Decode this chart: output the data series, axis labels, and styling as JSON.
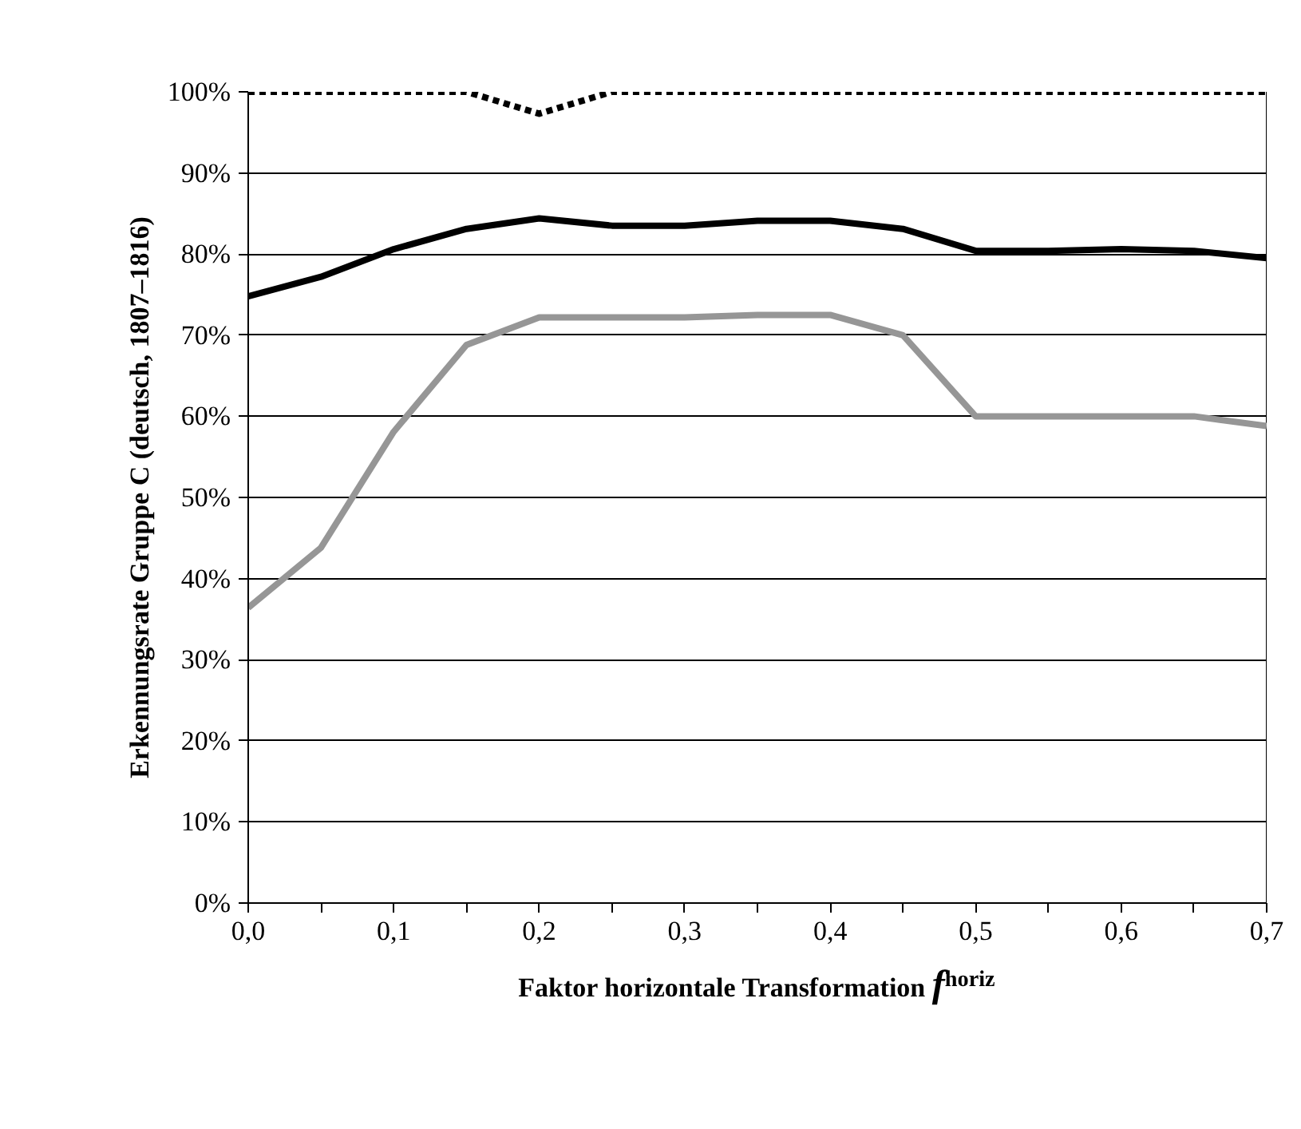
{
  "chart_data": {
    "type": "line",
    "xlabel": "Faktor horizontale Transformation f$^{horiz}$",
    "ylabel": "Erkennungsrate Gruppe C (deutsch, 1807–1816)",
    "x": [
      0,
      0.05,
      0.1,
      0.15,
      0.2,
      0.25,
      0.3,
      0.35,
      0.4,
      0.45,
      0.5,
      0.55,
      0.6,
      0.65,
      0.7
    ],
    "series": [
      {
        "color": "#000000",
        "line_style": "dashed",
        "values": [
          100,
          100,
          100,
          100,
          97.3,
          100,
          100,
          100,
          100,
          100,
          100,
          100,
          100,
          100,
          100
        ]
      },
      {
        "color": "#000000",
        "line_style": "solid",
        "values": [
          74.8,
          77.2,
          80.6,
          83.1,
          84.4,
          83.5,
          83.5,
          84.1,
          84.1,
          83.1,
          80.4,
          80.4,
          80.6,
          80.4,
          79.5
        ]
      },
      {
        "color": "#969696",
        "line_style": "solid",
        "values": [
          36.4,
          43.8,
          58.1,
          68.8,
          72.2,
          72.2,
          72.2,
          72.5,
          72.5,
          70,
          60,
          60,
          60,
          60,
          58.8
        ]
      }
    ],
    "xlim": [
      0,
      0.7
    ],
    "xticks": [
      {
        "value": 0,
        "label": "0,0"
      },
      {
        "value": 0.05,
        "label": null
      },
      {
        "value": 0.1,
        "label": "0,1"
      },
      {
        "value": 0.15,
        "label": null
      },
      {
        "value": 0.2,
        "label": "0,2"
      },
      {
        "value": 0.25,
        "label": null
      },
      {
        "value": 0.3,
        "label": "0,3"
      },
      {
        "value": 0.35,
        "label": null
      },
      {
        "value": 0.4,
        "label": "0,4"
      },
      {
        "value": 0.45,
        "label": null
      },
      {
        "value": 0.5,
        "label": "0,5"
      },
      {
        "value": 0.55,
        "label": null
      },
      {
        "value": 0.6,
        "label": "0,6"
      },
      {
        "value": 0.65,
        "label": null
      },
      {
        "value": 0.7,
        "label": "0,7"
      }
    ],
    "ylim": [
      0,
      100
    ],
    "yticks": [
      {
        "value": 0,
        "label": "0%"
      },
      {
        "value": 10,
        "label": "10%"
      },
      {
        "value": 20,
        "label": "20%"
      },
      {
        "value": 30,
        "label": "30%"
      },
      {
        "value": 40,
        "label": "40%"
      },
      {
        "value": 50,
        "label": "50%"
      },
      {
        "value": 60,
        "label": "60%"
      },
      {
        "value": 70,
        "label": "70%"
      },
      {
        "value": 80,
        "label": "80%"
      },
      {
        "value": 90,
        "label": "90%"
      },
      {
        "value": 100,
        "label": "100%"
      }
    ],
    "grid": "y",
    "marker": "none"
  }
}
